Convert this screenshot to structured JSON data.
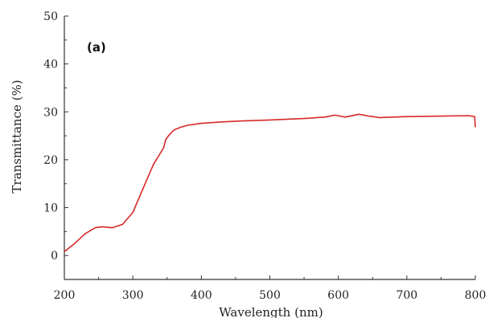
{
  "chart_data": {
    "type": "line",
    "panel_label": "(a)",
    "xlabel": "Wavelength (nm)",
    "ylabel": "Transmittance (%)",
    "xlim": [
      200,
      800
    ],
    "ylim": [
      -5,
      50
    ],
    "xticks": [
      200,
      300,
      400,
      500,
      600,
      700,
      800
    ],
    "yticks": [
      0,
      10,
      20,
      30,
      40,
      50
    ],
    "grid": false,
    "series": [
      {
        "color": "#d62728",
        "x": [
          200,
          215,
          230,
          245,
          255,
          270,
          285,
          300,
          315,
          330,
          345,
          348,
          352,
          360,
          370,
          380,
          400,
          430,
          460,
          500,
          550,
          580,
          595,
          610,
          630,
          645,
          660,
          700,
          750,
          790,
          799,
          800
        ],
        "y": [
          0.8,
          2.5,
          4.5,
          5.8,
          6.0,
          5.8,
          6.5,
          9.0,
          14.0,
          19.0,
          22.5,
          24.2,
          25.0,
          26.2,
          26.8,
          27.2,
          27.6,
          27.9,
          28.1,
          28.3,
          28.6,
          28.9,
          29.3,
          28.9,
          29.5,
          29.1,
          28.8,
          29.0,
          29.1,
          29.2,
          29.0,
          26.8
        ]
      }
    ]
  }
}
